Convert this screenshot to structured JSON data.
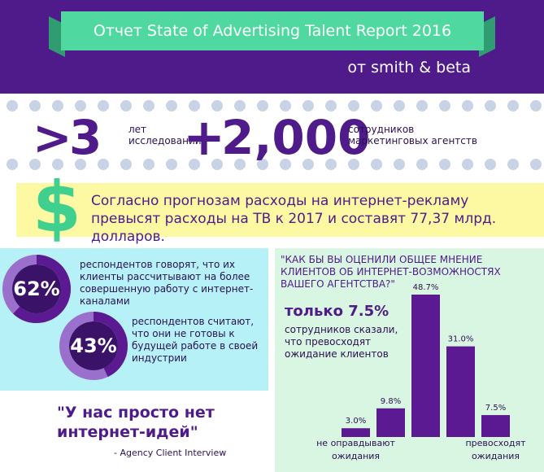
{
  "header": {
    "title": "Отчет State of Advertising Talent Report 2016",
    "subtitle": "от smith & beta"
  },
  "stats": {
    "sign_1": ">",
    "number_1": "3",
    "text_1": "лет исследований",
    "sign_2": "+",
    "number_2": "2,000",
    "text_2": "сотрудников маркетинговых агентств"
  },
  "banner": {
    "icon": "$",
    "text": "Согласно прогнозам расходы на интернет-рекламу превысят расходы на ТВ к 2017 и составят 77,37 млрд. долларов."
  },
  "donuts": {
    "values": [
      62,
      43
    ],
    "value_labels": [
      "62%",
      "43%"
    ],
    "texts": [
      "респондентов говорят, что их клиенты рассчитывают на более совершенную работу с интернет-каналами",
      "респондентов считают, что они не готовы к будущей работе в своей индустрии"
    ]
  },
  "quote": {
    "text": "\"У нас просто нет интернет-идей\"",
    "source": "- Agency Client Interview"
  },
  "chart_data": {
    "type": "bar",
    "title": "\"КАК БЫ ВЫ ОЦЕНИЛИ ОБЩЕЕ МНЕНИЕ КЛИЕНТОВ ОБ ИНТЕРНЕТ-ВОЗМОЖНОСТЯХ ВАШЕГО АГЕНТСТВА?\"",
    "annotation": "только 7.5%",
    "annotation_text": "сотрудников сказали, что превосходят ожидание клиентов",
    "categories": [
      "не оправдывают ожидания",
      null,
      null,
      null,
      "превосходят ожидания"
    ],
    "values": [
      3.0,
      9.8,
      48.7,
      31.0,
      7.5
    ],
    "value_labels": [
      "3.0%",
      "9.8%",
      "48.7%",
      "31.0%",
      "7.5%"
    ],
    "color": "#5b1a91"
  }
}
